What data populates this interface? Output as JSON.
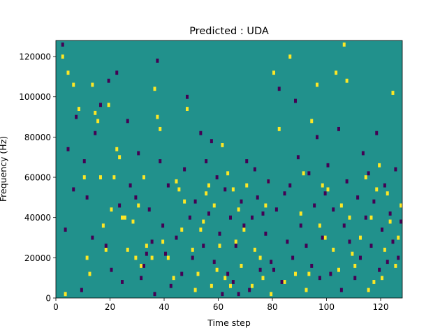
{
  "chart_data": {
    "type": "heatmap",
    "title": "Predicted : UDA",
    "xlabel": "Time step",
    "ylabel": "Frequency (Hz)",
    "xlim": [
      0,
      128
    ],
    "ylim": [
      0,
      128000
    ],
    "x_ticks": [
      0,
      20,
      40,
      60,
      80,
      100,
      120
    ],
    "y_ticks": [
      0,
      20000,
      40000,
      60000,
      80000,
      100000,
      120000
    ],
    "n_time_steps": 128,
    "n_freq_bins": 128,
    "colormap": "viridis",
    "colors": {
      "background": "#21918c",
      "high": "#fde725",
      "low": "#440154"
    },
    "background_value": 0,
    "marks_value_scale": {
      "high": 1,
      "low": -1
    },
    "high_marks": [
      [
        2,
        120000
      ],
      [
        3,
        2000
      ],
      [
        4,
        112000
      ],
      [
        6,
        106000
      ],
      [
        8,
        94000
      ],
      [
        10,
        60000
      ],
      [
        11,
        20000
      ],
      [
        12,
        12000
      ],
      [
        13,
        106000
      ],
      [
        14,
        92000
      ],
      [
        15,
        88000
      ],
      [
        16,
        60000
      ],
      [
        17,
        36000
      ],
      [
        18,
        24000
      ],
      [
        19,
        96000
      ],
      [
        20,
        44000
      ],
      [
        21,
        60000
      ],
      [
        22,
        74000
      ],
      [
        23,
        70000
      ],
      [
        24,
        40000
      ],
      [
        25,
        40000
      ],
      [
        26,
        24000
      ],
      [
        28,
        38000
      ],
      [
        29,
        20000
      ],
      [
        30,
        46000
      ],
      [
        31,
        16000
      ],
      [
        32,
        60000
      ],
      [
        33,
        26000
      ],
      [
        35,
        20000
      ],
      [
        36,
        104000
      ],
      [
        37,
        90000
      ],
      [
        38,
        84000
      ],
      [
        39,
        28000
      ],
      [
        41,
        20000
      ],
      [
        43,
        10000
      ],
      [
        44,
        58000
      ],
      [
        45,
        54000
      ],
      [
        46,
        34000
      ],
      [
        47,
        48000
      ],
      [
        48,
        94000
      ],
      [
        50,
        24000
      ],
      [
        51,
        4000
      ],
      [
        52,
        12000
      ],
      [
        53,
        34000
      ],
      [
        54,
        38000
      ],
      [
        55,
        52000
      ],
      [
        56,
        56000
      ],
      [
        57,
        6000
      ],
      [
        58,
        46000
      ],
      [
        59,
        14000
      ],
      [
        60,
        26000
      ],
      [
        61,
        76000
      ],
      [
        62,
        10000
      ],
      [
        63,
        62000
      ],
      [
        64,
        6000
      ],
      [
        65,
        54000
      ],
      [
        66,
        28000
      ],
      [
        67,
        44000
      ],
      [
        68,
        16000
      ],
      [
        69,
        34000
      ],
      [
        70,
        56000
      ],
      [
        72,
        6000
      ],
      [
        73,
        24000
      ],
      [
        75,
        20000
      ],
      [
        76,
        10000
      ],
      [
        77,
        46000
      ],
      [
        78,
        58000
      ],
      [
        79,
        2000
      ],
      [
        80,
        112000
      ],
      [
        82,
        84000
      ],
      [
        84,
        8000
      ],
      [
        86,
        120000
      ],
      [
        88,
        12000
      ],
      [
        90,
        42000
      ],
      [
        91,
        62000
      ],
      [
        92,
        4000
      ],
      [
        93,
        12000
      ],
      [
        94,
        88000
      ],
      [
        96,
        106000
      ],
      [
        97,
        36000
      ],
      [
        98,
        56000
      ],
      [
        99,
        30000
      ],
      [
        100,
        54000
      ],
      [
        102,
        24000
      ],
      [
        103,
        112000
      ],
      [
        104,
        14000
      ],
      [
        105,
        46000
      ],
      [
        106,
        126000
      ],
      [
        107,
        108000
      ],
      [
        108,
        40000
      ],
      [
        109,
        22000
      ],
      [
        110,
        16000
      ],
      [
        112,
        30000
      ],
      [
        114,
        60000
      ],
      [
        115,
        4000
      ],
      [
        116,
        40000
      ],
      [
        117,
        8000
      ],
      [
        118,
        54000
      ],
      [
        119,
        66000
      ],
      [
        120,
        10000
      ],
      [
        121,
        24000
      ],
      [
        122,
        52000
      ],
      [
        123,
        38000
      ],
      [
        124,
        102000
      ],
      [
        125,
        16000
      ],
      [
        126,
        30000
      ],
      [
        127,
        46000
      ]
    ],
    "low_marks": [
      [
        2,
        126000
      ],
      [
        3,
        34000
      ],
      [
        4,
        74000
      ],
      [
        6,
        54000
      ],
      [
        7,
        90000
      ],
      [
        9,
        4000
      ],
      [
        10,
        68000
      ],
      [
        11,
        50000
      ],
      [
        13,
        30000
      ],
      [
        14,
        82000
      ],
      [
        16,
        96000
      ],
      [
        18,
        26000
      ],
      [
        19,
        108000
      ],
      [
        20,
        14000
      ],
      [
        22,
        112000
      ],
      [
        23,
        46000
      ],
      [
        24,
        8000
      ],
      [
        26,
        88000
      ],
      [
        27,
        56000
      ],
      [
        29,
        50000
      ],
      [
        30,
        72000
      ],
      [
        31,
        10000
      ],
      [
        32,
        16000
      ],
      [
        33,
        22000
      ],
      [
        34,
        44000
      ],
      [
        35,
        28000
      ],
      [
        36,
        2000
      ],
      [
        37,
        118000
      ],
      [
        38,
        68000
      ],
      [
        39,
        36000
      ],
      [
        40,
        22000
      ],
      [
        41,
        56000
      ],
      [
        42,
        6000
      ],
      [
        44,
        30000
      ],
      [
        46,
        12000
      ],
      [
        47,
        64000
      ],
      [
        48,
        100000
      ],
      [
        49,
        40000
      ],
      [
        50,
        20000
      ],
      [
        51,
        48000
      ],
      [
        53,
        82000
      ],
      [
        54,
        26000
      ],
      [
        55,
        68000
      ],
      [
        56,
        42000
      ],
      [
        57,
        78000
      ],
      [
        58,
        18000
      ],
      [
        59,
        60000
      ],
      [
        60,
        32000
      ],
      [
        61,
        2000
      ],
      [
        62,
        54000
      ],
      [
        63,
        12000
      ],
      [
        64,
        40000
      ],
      [
        65,
        8000
      ],
      [
        66,
        26000
      ],
      [
        67,
        2000
      ],
      [
        68,
        48000
      ],
      [
        69,
        36000
      ],
      [
        70,
        68000
      ],
      [
        71,
        4000
      ],
      [
        72,
        40000
      ],
      [
        73,
        64000
      ],
      [
        74,
        50000
      ],
      [
        75,
        14000
      ],
      [
        76,
        42000
      ],
      [
        77,
        32000
      ],
      [
        78,
        58000
      ],
      [
        79,
        18000
      ],
      [
        80,
        14000
      ],
      [
        81,
        44000
      ],
      [
        82,
        104000
      ],
      [
        83,
        8000
      ],
      [
        84,
        52000
      ],
      [
        85,
        28000
      ],
      [
        86,
        56000
      ],
      [
        87,
        20000
      ],
      [
        88,
        98000
      ],
      [
        89,
        70000
      ],
      [
        90,
        36000
      ],
      [
        92,
        26000
      ],
      [
        93,
        62000
      ],
      [
        94,
        16000
      ],
      [
        95,
        46000
      ],
      [
        96,
        80000
      ],
      [
        97,
        10000
      ],
      [
        98,
        30000
      ],
      [
        99,
        52000
      ],
      [
        100,
        66000
      ],
      [
        101,
        12000
      ],
      [
        102,
        44000
      ],
      [
        104,
        84000
      ],
      [
        105,
        4000
      ],
      [
        106,
        36000
      ],
      [
        107,
        58000
      ],
      [
        108,
        28000
      ],
      [
        110,
        10000
      ],
      [
        111,
        50000
      ],
      [
        112,
        20000
      ],
      [
        113,
        72000
      ],
      [
        114,
        40000
      ],
      [
        115,
        62000
      ],
      [
        116,
        26000
      ],
      [
        117,
        48000
      ],
      [
        118,
        82000
      ],
      [
        119,
        14000
      ],
      [
        120,
        34000
      ],
      [
        121,
        56000
      ],
      [
        122,
        18000
      ],
      [
        123,
        42000
      ],
      [
        124,
        28000
      ],
      [
        125,
        64000
      ],
      [
        126,
        20000
      ],
      [
        127,
        38000
      ]
    ]
  }
}
